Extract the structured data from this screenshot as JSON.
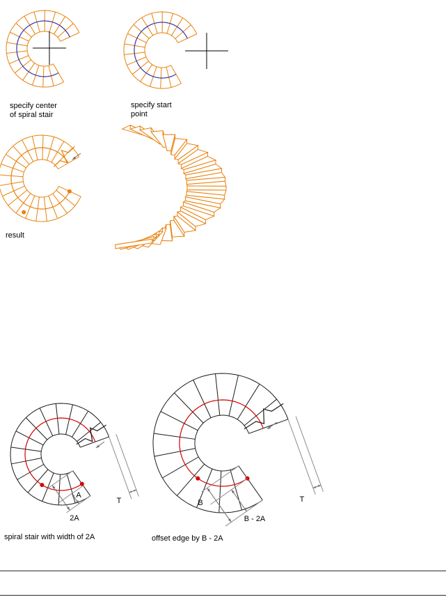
{
  "colors": {
    "stair_orange": "#e8810c",
    "walkline_blue": "#3434ad",
    "walkline_red": "#d40000",
    "stair_black": "#1a1a1a",
    "dot_red": "#d40000",
    "dimension_gray": "#8c8c8c",
    "arrow_gray": "#6e6e6e",
    "crosshair_black": "#000000",
    "rule_black": "#2a2a2a"
  },
  "figures": {
    "specify_center": {
      "caption": "specify center\nof spiral stair"
    },
    "specify_start": {
      "caption": "specify start\npoint"
    },
    "result": {
      "caption": "result"
    },
    "width_2a": {
      "caption": "spiral stair with width of 2A",
      "dim_labels": {
        "a": "A",
        "two_a": "2A",
        "t": "T"
      }
    },
    "offset_edge": {
      "caption": "offset edge by B - 2A",
      "dim_labels": {
        "b": "B",
        "b_minus_2a": "B - 2A",
        "t": "T"
      }
    }
  }
}
